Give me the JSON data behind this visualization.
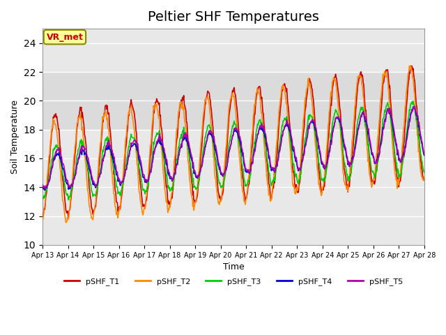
{
  "title": "Peltier SHF Temperatures",
  "xlabel": "Time",
  "ylabel": "Soil Temperature",
  "annotation": "VR_met",
  "ylim": [
    10,
    25
  ],
  "xlim_days": [
    13,
    28
  ],
  "x_tick_labels": [
    "Apr 13",
    "Apr 14",
    "Apr 15",
    "Apr 16",
    "Apr 17",
    "Apr 18",
    "Apr 19",
    "Apr 20",
    "Apr 21",
    "Apr 22",
    "Apr 23",
    "Apr 24",
    "Apr 25",
    "Apr 26",
    "Apr 27",
    "Apr 28"
  ],
  "series_colors": {
    "pSHF_T1": "#cc0000",
    "pSHF_T2": "#ff8800",
    "pSHF_T3": "#00cc00",
    "pSHF_T4": "#0000cc",
    "pSHF_T5": "#aa00aa"
  },
  "series_names": [
    "pSHF_T1",
    "pSHF_T2",
    "pSHF_T3",
    "pSHF_T4",
    "pSHF_T5"
  ],
  "background_color": "#ffffff",
  "plot_bg_color": "#e8e8e8",
  "grid_color": "#ffffff",
  "title_fontsize": 14,
  "annotation_bg": "#ffff99",
  "annotation_border": "#888800"
}
